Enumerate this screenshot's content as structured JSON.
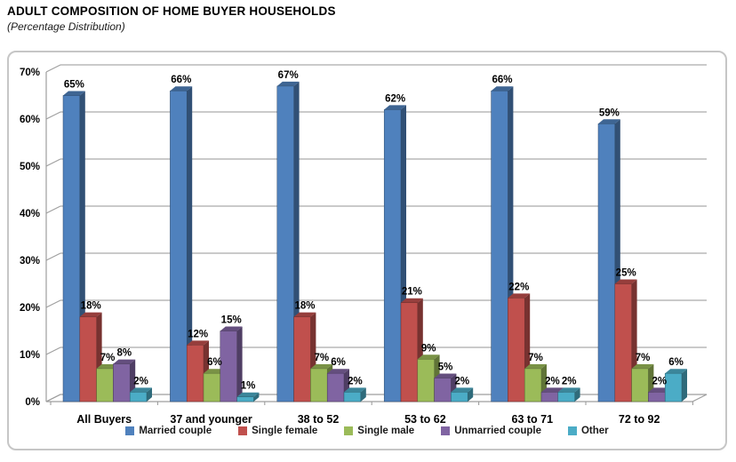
{
  "page": {
    "title": "ADULT COMPOSITION OF HOME BUYER HOUSEHOLDS",
    "subtitle": "(Percentage Distribution)"
  },
  "chart_data": {
    "type": "bar",
    "style": "3d-clustered-column",
    "title": "ADULT COMPOSITION OF HOME BUYER HOUSEHOLDS",
    "subtitle": "(Percentage Distribution)",
    "categories": [
      "All Buyers",
      "37 and younger",
      "38 to 52",
      "53 to 62",
      "63 to 71",
      "72 to 92"
    ],
    "series": [
      {
        "name": "Married couple",
        "color": "#4F81BD",
        "values": [
          65,
          66,
          67,
          62,
          66,
          59
        ]
      },
      {
        "name": "Single female",
        "color": "#C0504D",
        "values": [
          18,
          12,
          18,
          21,
          22,
          25
        ]
      },
      {
        "name": "Single male",
        "color": "#9BBB59",
        "values": [
          7,
          6,
          7,
          9,
          7,
          7
        ]
      },
      {
        "name": "Unmarried couple",
        "color": "#8064A2",
        "values": [
          8,
          15,
          6,
          5,
          2,
          2
        ]
      },
      {
        "name": "Other",
        "color": "#4BACC6",
        "values": [
          2,
          1,
          2,
          2,
          2,
          6
        ]
      }
    ],
    "value_label_suffix": "%",
    "yaxis": {
      "min": 0,
      "max": 70,
      "step": 10,
      "tick_labels": [
        "0%",
        "10%",
        "20%",
        "30%",
        "40%",
        "50%",
        "60%",
        "70%"
      ]
    },
    "grid": true,
    "legend_position": "bottom",
    "colors": {
      "gridline": "#ABABAB",
      "axis": "#9E9E9E",
      "label_text": "#000000",
      "frame_border": "#C6C6C6"
    }
  }
}
